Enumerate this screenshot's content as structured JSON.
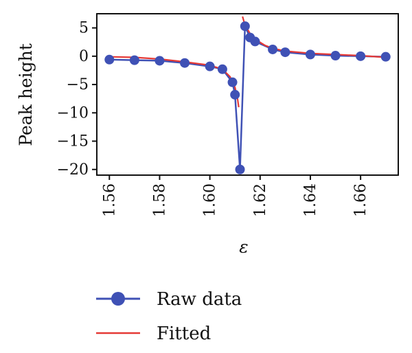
{
  "chart_data": {
    "type": "line",
    "xlabel": "ε",
    "ylabel": "Peak height",
    "xlim": [
      1.555,
      1.675
    ],
    "ylim": [
      -21,
      7.5
    ],
    "xticks": [
      1.56,
      1.58,
      1.6,
      1.62,
      1.64,
      1.66
    ],
    "xtick_labels": [
      "1.56",
      "1.58",
      "1.60",
      "1.62",
      "1.64",
      "1.66"
    ],
    "yticks": [
      5,
      0,
      -5,
      -10,
      -15,
      -20
    ],
    "ytick_labels": [
      "5",
      "0",
      "−5",
      "−10",
      "−15",
      "−20"
    ],
    "grid": false,
    "legend_position": "bottom",
    "series": [
      {
        "name": "Raw data",
        "style": "line+markers",
        "color": "#3f51b5",
        "x": [
          1.56,
          1.57,
          1.58,
          1.59,
          1.6,
          1.605,
          1.609,
          1.61,
          1.612,
          1.614,
          1.616,
          1.618,
          1.625,
          1.63,
          1.64,
          1.65,
          1.66,
          1.67
        ],
        "y": [
          -0.6,
          -0.7,
          -0.8,
          -1.2,
          -1.8,
          -2.3,
          -4.6,
          -6.8,
          -20.0,
          5.3,
          3.3,
          2.6,
          1.2,
          0.7,
          0.3,
          0.1,
          0.0,
          -0.1
        ]
      },
      {
        "name": "Fitted",
        "style": "line",
        "color": "#e53935",
        "x": [
          1.56,
          1.57,
          1.58,
          1.59,
          1.6,
          1.605,
          1.608,
          1.61,
          1.611,
          1.6115,
          1.613,
          1.614,
          1.616,
          1.618,
          1.622,
          1.625,
          1.63,
          1.64,
          1.65,
          1.66,
          1.67
        ],
        "y": [
          -0.1,
          -0.2,
          -0.5,
          -1.0,
          -1.6,
          -2.3,
          -3.6,
          -5.5,
          -7.5,
          -9.0,
          7.0,
          5.5,
          4.0,
          3.0,
          1.9,
          1.4,
          0.9,
          0.5,
          0.3,
          0.1,
          -0.2
        ]
      }
    ]
  }
}
